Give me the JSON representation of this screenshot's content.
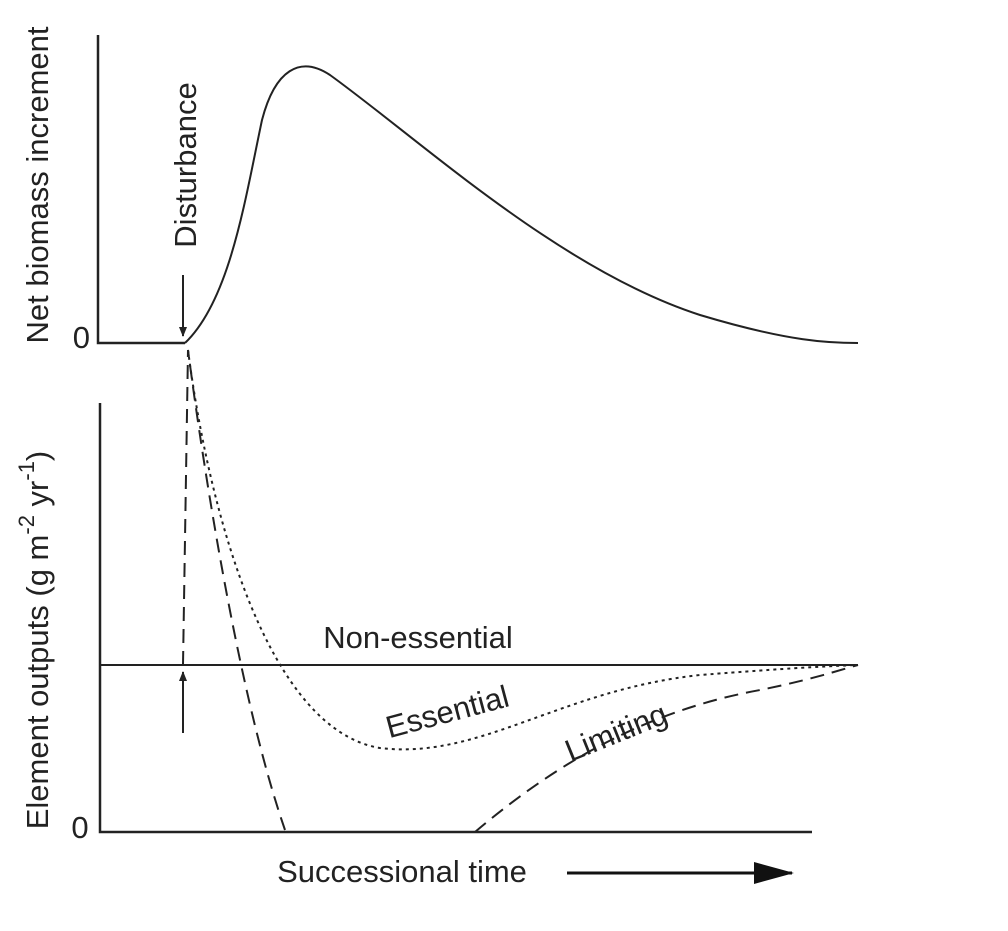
{
  "top_panel": {
    "y_axis_label": "Net biomass increment",
    "zero_label": "0",
    "event_label": "Disturbance"
  },
  "bottom_panel": {
    "y_axis_label": {
      "main": "Element outputs  (g m",
      "exp1": "-2",
      "mid": " yr",
      "exp2": "-1",
      "close": ")"
    },
    "zero_label": "0",
    "curves": {
      "non_essential": "Non-essential",
      "essential": "Essential",
      "limiting": "Limiting"
    },
    "x_axis_label": "Successional time"
  }
}
